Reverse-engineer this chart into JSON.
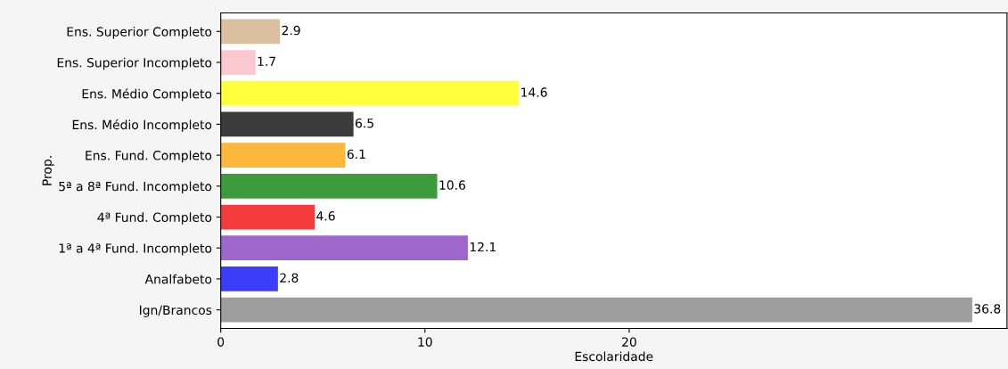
{
  "chart_data": {
    "type": "bar",
    "orientation": "horizontal",
    "xlabel": "Escolaridade",
    "ylabel": "Prop.",
    "categories": [
      "Ens. Superior Completo",
      "Ens. Superior Incompleto",
      "Ens. Médio Completo",
      "Ens. Médio Incompleto",
      "Ens. Fund. Completo",
      "5ª a 8ª Fund. Incompleto",
      "4ª Fund. Completo",
      "1ª a 4ª Fund. Incompleto",
      "Analfabeto",
      "Ign/Brancos"
    ],
    "values": [
      2.9,
      1.7,
      14.6,
      6.5,
      6.1,
      10.6,
      4.6,
      12.1,
      2.8,
      36.8
    ],
    "colors": [
      "#dbbf9f",
      "#fbc8d0",
      "#ffff3c",
      "#3b3b3b",
      "#fbb83c",
      "#3c9b3c",
      "#f43c3c",
      "#9e67cc",
      "#3c3cfb",
      "#9e9e9e"
    ],
    "xlim": [
      0,
      38.5
    ],
    "xticks": [
      0,
      10,
      20
    ],
    "data_labels": true,
    "grid": false,
    "legend": false
  }
}
